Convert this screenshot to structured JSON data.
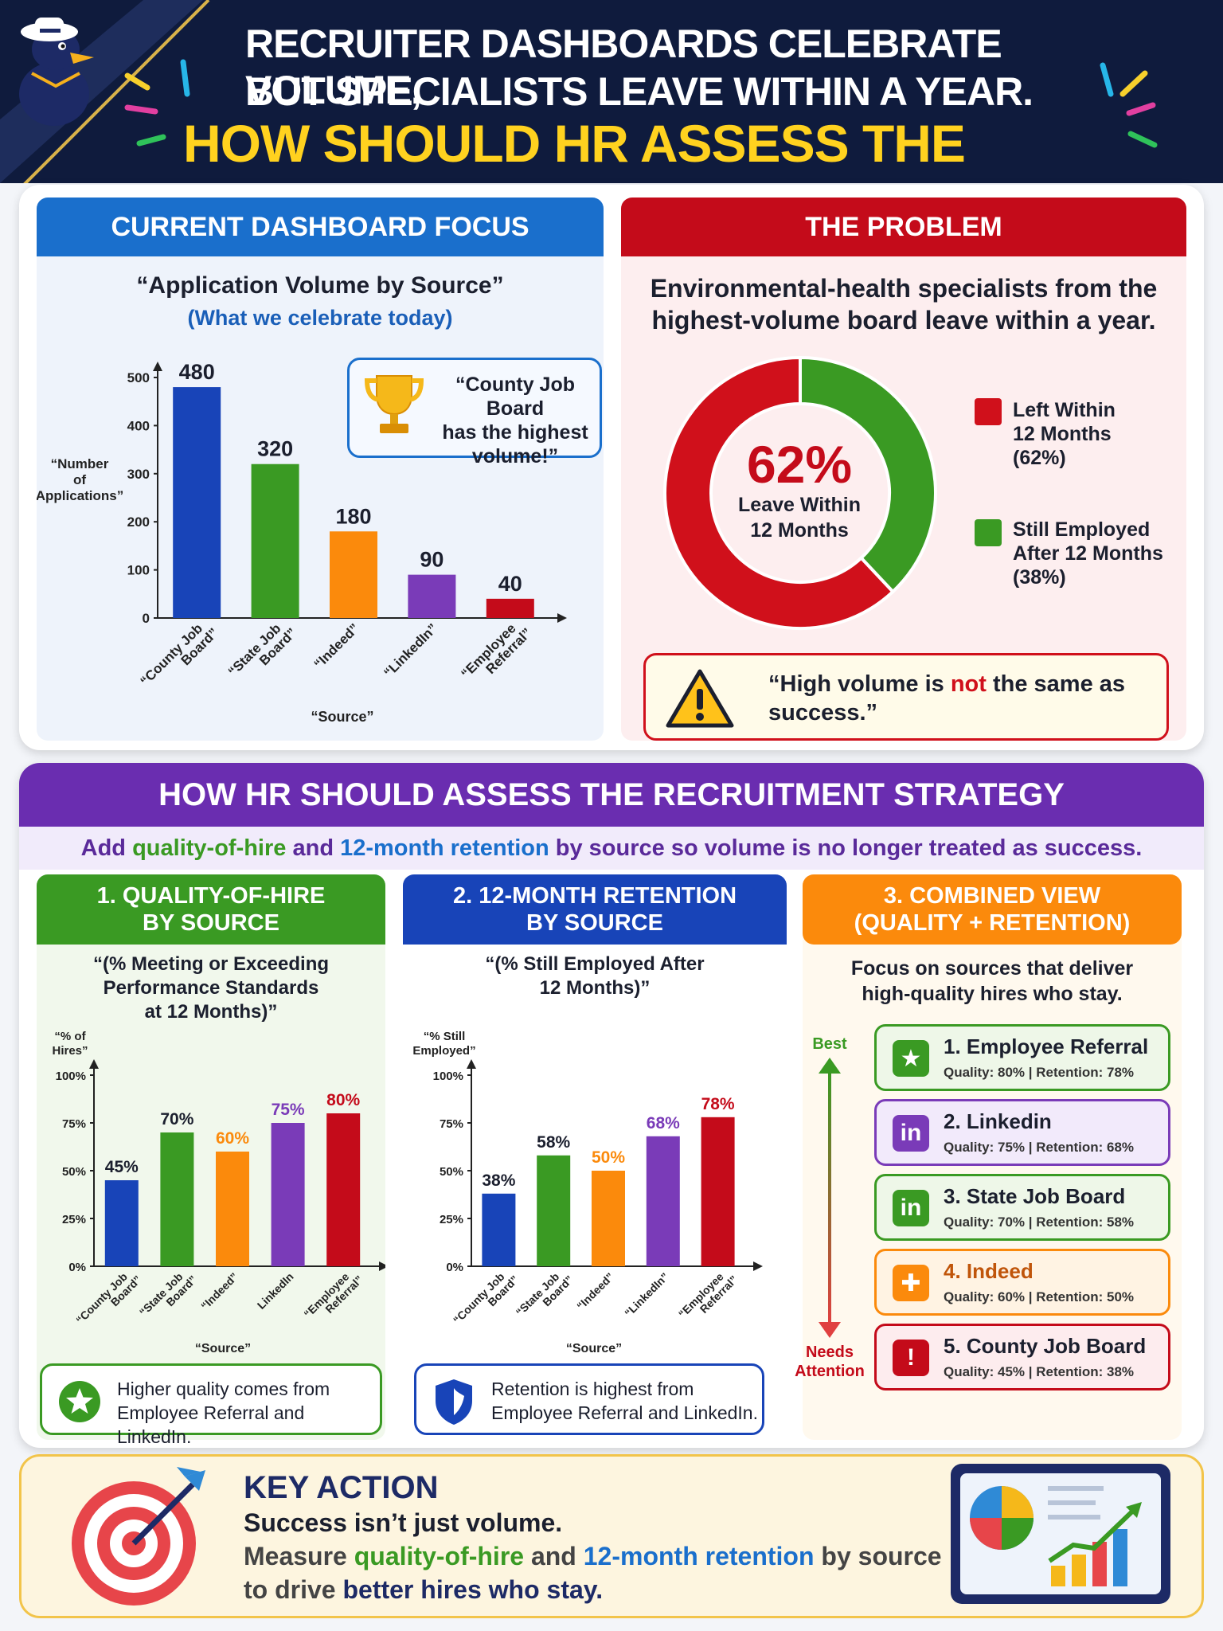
{
  "header": {
    "line1": "RECRUITER DASHBOARDS CELEBRATE VOLUME,",
    "line2": "BUT SPECIALISTS LEAVE WITHIN A YEAR.",
    "line3": "HOW SHOULD HR ASSESS THE STRATEGY?",
    "mascot_icon": "duck-sailor-mascot-icon"
  },
  "colors": {
    "navy": "#0f1b3d",
    "blue": "#1844b8",
    "green": "#3a9a23",
    "orange": "#fb8a0c",
    "purple": "#7a3bb8",
    "red": "#c40b1a",
    "yellow": "#ffd21f"
  },
  "dashboard": {
    "heading": "CURRENT DASHBOARD FOCUS",
    "title": "“Application Volume by Source”",
    "subtitle": "(What we celebrate today)",
    "callout": {
      "icon": "trophy-icon",
      "line1": "“County Job Board",
      "line2": "has the highest",
      "line3": "volume!”"
    }
  },
  "problem": {
    "heading": "THE PROBLEM",
    "statement_line1": "Environmental-health specialists from the",
    "statement_line2": "highest-volume board leave within a year.",
    "donut_pct": "62%",
    "donut_label1": "Leave Within",
    "donut_label2": "12 Months",
    "legend": [
      {
        "line1": "Left Within",
        "line2": "12 Months",
        "line3": "(62%)",
        "color": "#d0101b"
      },
      {
        "line1": "Still Employed",
        "line2": "After 12 Months",
        "line3": "(38%)",
        "color": "#3a9a23"
      }
    ],
    "warning": {
      "icon": "warning-icon",
      "pre": "“High volume is ",
      "emph": "not",
      "post": " the same as",
      "line2": "success.”"
    }
  },
  "assess": {
    "heading": "HOW HR SHOULD ASSESS THE RECRUITMENT STRATEGY",
    "sub_a": "Add ",
    "sub_b": "quality-of-hire",
    "sub_c": " and ",
    "sub_d": "12-month retention",
    "sub_e": " by source so volume is no longer treated as success.",
    "quality": {
      "heading1": "1. QUALITY-OF-HIRE",
      "heading2": "BY SOURCE",
      "title1": "“(% Meeting or Exceeding",
      "title2": "Performance Standards",
      "title3": "at 12 Months)”",
      "footer": {
        "icon": "star-badge-icon",
        "line1": "Higher quality comes from",
        "line2": "Employee Referral and LinkedIn."
      }
    },
    "retention": {
      "heading1": "2. 12-MONTH RETENTION",
      "heading2": "BY SOURCE",
      "title1": "“(% Still Employed After",
      "title2": "12 Months)”",
      "footer": {
        "icon": "shield-icon",
        "line1": "Retention is highest from",
        "line2": "Employee Referral and LinkedIn."
      }
    },
    "combined": {
      "heading1": "3. COMBINED VIEW",
      "heading2": "(QUALITY + RETENTION)",
      "title1": "Focus on sources that deliver",
      "title2": "high-quality hires who stay.",
      "best_label": "Best",
      "needs_label1": "Needs",
      "needs_label2": "Attention",
      "items": [
        {
          "name": "1. Employee Referral",
          "metrics": "Quality: 80%  |  Retention: 78%",
          "icon": "award-icon",
          "color": "#3a9a23",
          "bg": "#eef7e8"
        },
        {
          "name": "2. Linkedin",
          "metrics": "Quality: 75%  |  Retention: 68%",
          "icon": "linkedin-icon",
          "color": "#7a3bb8",
          "bg": "#f2eafb"
        },
        {
          "name": "3. State Job Board",
          "metrics": "Quality: 70%  |  Retention: 58%",
          "icon": "linkedin-icon",
          "color": "#3a9a23",
          "bg": "#eef7e8"
        },
        {
          "name": "4. Indeed",
          "metrics": "Quality: 60%  |  Retention: 50%",
          "icon": "puzzle-icon",
          "color": "#fb8a0c",
          "bg": "#fff3e3"
        },
        {
          "name": "5. County Job Board",
          "metrics": "Quality: 45%  |  Retention: 38%",
          "icon": "warning-icon",
          "color": "#c40b1a",
          "bg": "#fdecee"
        }
      ]
    }
  },
  "key_action": {
    "icon": "target-arrow-icon",
    "dashboard_icon": "dashboard-chart-icon",
    "heading": "KEY ACTION",
    "line1": "Success isn’t just volume.",
    "line2_a": "Measure ",
    "line2_b": "quality-of-hire",
    "line2_c": " and ",
    "line2_d": "12-month retention",
    "line2_e": " by source",
    "line3_a": "to drive ",
    "line3_b": "better hires who stay."
  },
  "chart_data": [
    {
      "type": "bar",
      "title": "“Application Volume by Source”",
      "xlabel": "“Source”",
      "ylabel": "“Number of Applications”",
      "categories": [
        "“County Job Board”",
        "“State Job Board”",
        "“Indeed”",
        "“LinkedIn”",
        "“Employee Referral”"
      ],
      "values": [
        480,
        320,
        180,
        90,
        40
      ],
      "value_labels": [
        "480",
        "320",
        "180",
        "90",
        "40"
      ],
      "ylim": [
        0,
        500
      ],
      "yticks": [
        "0",
        "100",
        "200",
        "300",
        "400",
        "500"
      ],
      "colors": [
        "#1844b8",
        "#3a9a23",
        "#fb8a0c",
        "#7a3bb8",
        "#c40b1a"
      ]
    },
    {
      "type": "pie",
      "title": "",
      "categories": [
        "Left Within 12 Months",
        "Still Employed After 12 Months"
      ],
      "values": [
        62,
        38
      ],
      "colors": [
        "#d0101b",
        "#3a9a23"
      ]
    },
    {
      "type": "bar",
      "title": "“(% Meeting or Exceeding Performance Standards at 12 Months)”",
      "xlabel": "“Source”",
      "ylabel": "“% of Hires”",
      "categories": [
        "“County Job Board”",
        "“State Job Board”",
        "“Indeed”",
        "LinkedIn",
        "“Employee Referral”"
      ],
      "values": [
        45,
        70,
        60,
        75,
        80
      ],
      "value_labels": [
        "45%",
        "70%",
        "60%",
        "75%",
        "80%"
      ],
      "ylim": [
        0,
        100
      ],
      "yticks": [
        "0%",
        "25%",
        "50%",
        "75%",
        "100%"
      ],
      "colors": [
        "#1844b8",
        "#3a9a23",
        "#fb8a0c",
        "#7a3bb8",
        "#c40b1a"
      ]
    },
    {
      "type": "bar",
      "title": "“(% Still Employed After 12 Months)”",
      "xlabel": "“Source”",
      "ylabel": "“% Still Employed”",
      "categories": [
        "“County Job Board”",
        "“State Job Board”",
        "“Indeed”",
        "“LinkedIn”",
        "“Employee Referral”"
      ],
      "values": [
        38,
        58,
        50,
        68,
        78
      ],
      "value_labels": [
        "38%",
        "58%",
        "50%",
        "68%",
        "78%"
      ],
      "ylim": [
        0,
        100
      ],
      "yticks": [
        "0%",
        "25%",
        "50%",
        "75%",
        "100%"
      ],
      "colors": [
        "#1844b8",
        "#3a9a23",
        "#fb8a0c",
        "#7a3bb8",
        "#c40b1a"
      ]
    }
  ]
}
